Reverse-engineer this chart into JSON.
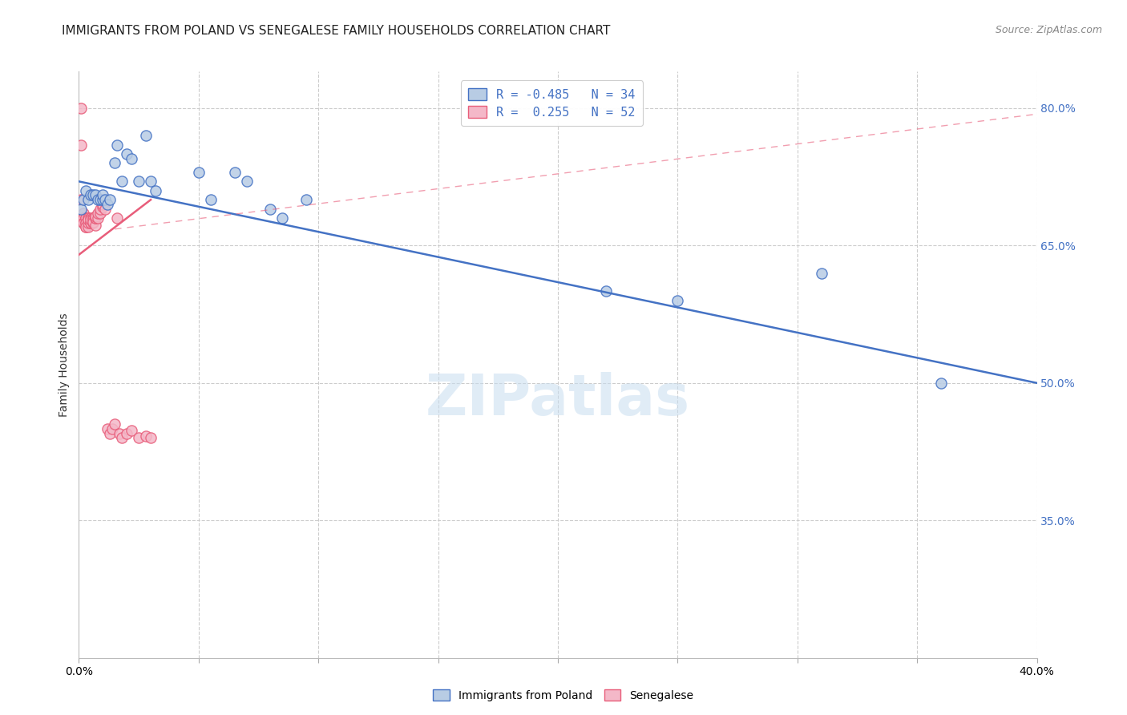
{
  "title": "IMMIGRANTS FROM POLAND VS SENEGALESE FAMILY HOUSEHOLDS CORRELATION CHART",
  "source": "Source: ZipAtlas.com",
  "ylabel": "Family Households",
  "legend_line1": "R = -0.485   N = 34",
  "legend_line2": "R =  0.255   N = 52",
  "blue_scatter_x": [
    0.001,
    0.002,
    0.003,
    0.004,
    0.005,
    0.006,
    0.007,
    0.008,
    0.009,
    0.01,
    0.01,
    0.011,
    0.012,
    0.013,
    0.015,
    0.016,
    0.018,
    0.02,
    0.022,
    0.025,
    0.028,
    0.03,
    0.032,
    0.05,
    0.055,
    0.065,
    0.07,
    0.08,
    0.085,
    0.095,
    0.22,
    0.25,
    0.31,
    0.36
  ],
  "blue_scatter_y": [
    0.69,
    0.7,
    0.71,
    0.7,
    0.705,
    0.705,
    0.705,
    0.7,
    0.7,
    0.7,
    0.705,
    0.7,
    0.695,
    0.7,
    0.74,
    0.76,
    0.72,
    0.75,
    0.745,
    0.72,
    0.77,
    0.72,
    0.71,
    0.73,
    0.7,
    0.73,
    0.72,
    0.69,
    0.68,
    0.7,
    0.6,
    0.59,
    0.62,
    0.5
  ],
  "pink_scatter_x": [
    0.001,
    0.001,
    0.001,
    0.002,
    0.002,
    0.002,
    0.002,
    0.002,
    0.003,
    0.003,
    0.003,
    0.003,
    0.003,
    0.003,
    0.003,
    0.004,
    0.004,
    0.004,
    0.004,
    0.004,
    0.004,
    0.005,
    0.005,
    0.005,
    0.005,
    0.006,
    0.006,
    0.006,
    0.006,
    0.007,
    0.007,
    0.007,
    0.007,
    0.008,
    0.008,
    0.009,
    0.009,
    0.01,
    0.01,
    0.011,
    0.012,
    0.013,
    0.014,
    0.015,
    0.016,
    0.017,
    0.018,
    0.02,
    0.022,
    0.025,
    0.028,
    0.03
  ],
  "pink_scatter_y": [
    0.8,
    0.76,
    0.7,
    0.68,
    0.685,
    0.675,
    0.68,
    0.675,
    0.68,
    0.675,
    0.68,
    0.67,
    0.68,
    0.675,
    0.67,
    0.67,
    0.68,
    0.675,
    0.68,
    0.68,
    0.678,
    0.675,
    0.68,
    0.675,
    0.678,
    0.675,
    0.68,
    0.678,
    0.676,
    0.672,
    0.68,
    0.68,
    0.682,
    0.68,
    0.685,
    0.685,
    0.69,
    0.692,
    0.695,
    0.69,
    0.45,
    0.445,
    0.45,
    0.455,
    0.68,
    0.445,
    0.44,
    0.445,
    0.448,
    0.44,
    0.442,
    0.44
  ],
  "blue_line_x": [
    0.0,
    0.4
  ],
  "blue_line_y": [
    0.72,
    0.5
  ],
  "pink_line_x": [
    0.0,
    0.03
  ],
  "pink_line_y": [
    0.64,
    0.7
  ],
  "blue_color": "#4472c4",
  "pink_color": "#e85d7a",
  "blue_fill": "#b8cce4",
  "pink_fill": "#f4b8c8",
  "watermark_text": "ZIPatlas",
  "xmin": 0.0,
  "xmax": 0.4,
  "ymin": 0.2,
  "ymax": 0.84,
  "x_ticks": [
    0.0,
    0.05,
    0.1,
    0.15,
    0.2,
    0.25,
    0.3,
    0.35,
    0.4
  ],
  "y_ticks_right": [
    0.8,
    0.65,
    0.5,
    0.35
  ],
  "y_tick_labels_right": [
    "80.0%",
    "65.0%",
    "50.0%",
    "35.0%"
  ],
  "grid_color": "#cccccc",
  "background_color": "#ffffff",
  "title_fontsize": 11,
  "tick_fontsize": 10,
  "ylabel_fontsize": 10,
  "source_fontsize": 9,
  "legend_fontsize": 11,
  "watermark_fontsize": 52
}
